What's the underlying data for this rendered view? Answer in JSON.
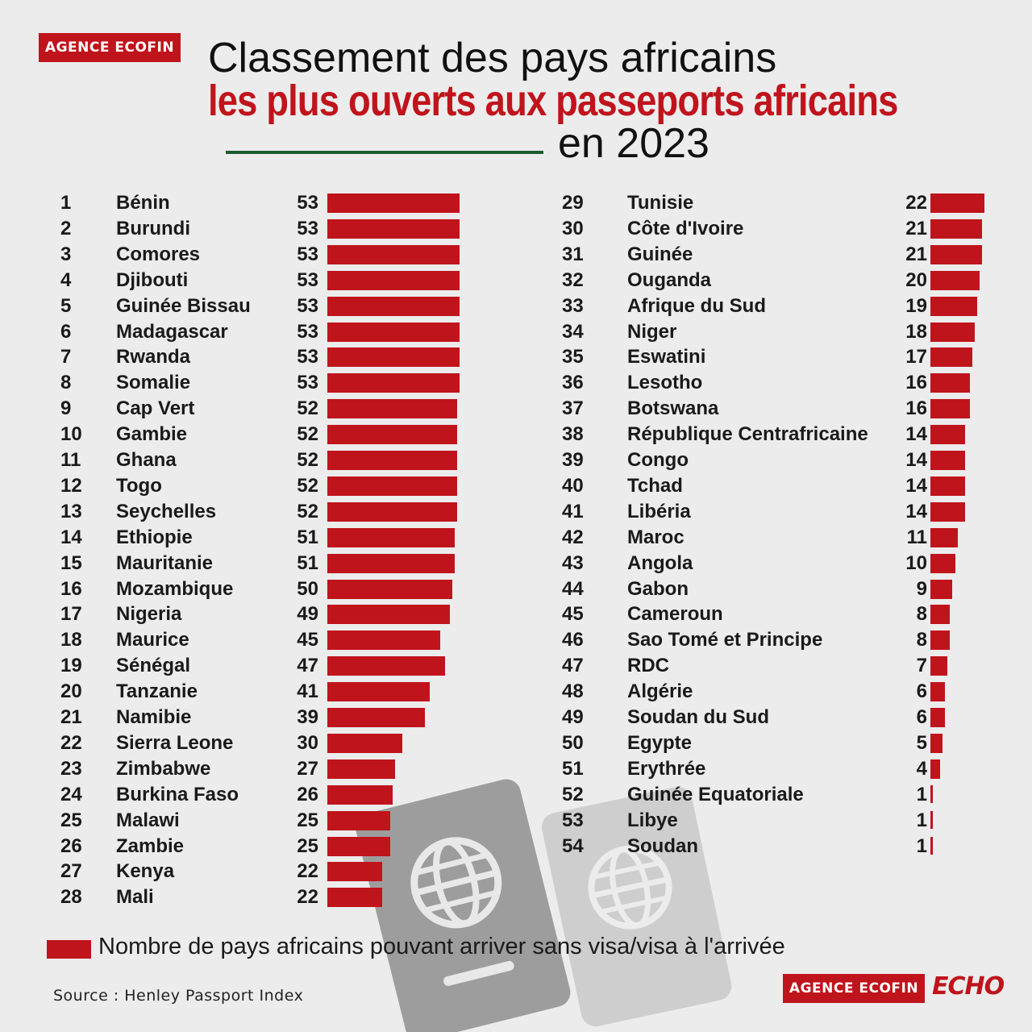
{
  "logo_text": "AGENCE ECOFIN",
  "echo_text": "ECHO",
  "title": {
    "line1": "Classement des pays africains",
    "line2": "les plus ouverts aux passeports africains",
    "line3": "en 2023"
  },
  "legend": "Nombre de pays africains pouvant arriver sans visa/visa à l'arrivée",
  "source": "Source : Henley Passport Index",
  "colors": {
    "bar": "#c0141c",
    "accent_green": "#1d5c2e"
  },
  "chart_data": {
    "type": "bar",
    "orientation": "horizontal",
    "title": "Classement des pays africains les plus ouverts aux passeports africains en 2023",
    "series_name": "Nombre de pays africains pouvant arriver sans visa/visa à l'arrivée",
    "rows": [
      {
        "rank": "1",
        "country": "Bénin",
        "value": 53
      },
      {
        "rank": "2",
        "country": "Burundi",
        "value": 53
      },
      {
        "rank": "3",
        "country": "Comores",
        "value": 53
      },
      {
        "rank": "4",
        "country": "Djibouti",
        "value": 53
      },
      {
        "rank": "5",
        "country": "Guinée Bissau",
        "value": 53
      },
      {
        "rank": "6",
        "country": "Madagascar",
        "value": 53
      },
      {
        "rank": "7",
        "country": "Rwanda",
        "value": 53
      },
      {
        "rank": "8",
        "country": "Somalie",
        "value": 53
      },
      {
        "rank": "9",
        "country": "Cap Vert",
        "value": 52
      },
      {
        "rank": "10",
        "country": "Gambie",
        "value": 52
      },
      {
        "rank": "11",
        "country": "Ghana",
        "value": 52
      },
      {
        "rank": "12",
        "country": "Togo",
        "value": 52
      },
      {
        "rank": "13",
        "country": "Seychelles",
        "value": 52
      },
      {
        "rank": "14",
        "country": "Ethiopie",
        "value": 51
      },
      {
        "rank": "15",
        "country": "Mauritanie",
        "value": 51
      },
      {
        "rank": "16",
        "country": "Mozambique",
        "value": 50
      },
      {
        "rank": "17",
        "country": "Nigeria",
        "value": 49
      },
      {
        "rank": "18",
        "country": "Maurice",
        "value": 45
      },
      {
        "rank": "19",
        "country": "Sénégal",
        "value": 47
      },
      {
        "rank": "20",
        "country": "Tanzanie",
        "value": 41
      },
      {
        "rank": "21",
        "country": "Namibie",
        "value": 39
      },
      {
        "rank": "22",
        "country": "Sierra Leone",
        "value": 30
      },
      {
        "rank": "23",
        "country": "Zimbabwe",
        "value": 27
      },
      {
        "rank": "24",
        "country": "Burkina Faso",
        "value": 26
      },
      {
        "rank": "25",
        "country": "Malawi",
        "value": 25
      },
      {
        "rank": "26",
        "country": "Zambie",
        "value": 25
      },
      {
        "rank": "27",
        "country": "Kenya",
        "value": 22
      },
      {
        "rank": "28",
        "country": "Mali",
        "value": 22
      },
      {
        "rank": "29",
        "country": "Tunisie",
        "value": 22
      },
      {
        "rank": "30",
        "country": "Côte d'Ivoire",
        "value": 21
      },
      {
        "rank": "31",
        "country": "Guinée",
        "value": 21
      },
      {
        "rank": "32",
        "country": "Ouganda",
        "value": 20
      },
      {
        "rank": "33",
        "country": "Afrique du Sud",
        "value": 19
      },
      {
        "rank": "34",
        "country": "Niger",
        "value": 18
      },
      {
        "rank": "35",
        "country": "Eswatini",
        "value": 17
      },
      {
        "rank": "36",
        "country": "Lesotho",
        "value": 16
      },
      {
        "rank": "37",
        "country": "Botswana",
        "value": 16
      },
      {
        "rank": "38",
        "country": "République Centrafricaine",
        "value": 14
      },
      {
        "rank": "39",
        "country": "Congo",
        "value": 14
      },
      {
        "rank": "40",
        "country": "Tchad",
        "value": 14
      },
      {
        "rank": "41",
        "country": "Libéria",
        "value": 14
      },
      {
        "rank": "42",
        "country": "Maroc",
        "value": 11
      },
      {
        "rank": "43",
        "country": "Angola",
        "value": 10
      },
      {
        "rank": "44",
        "country": "Gabon",
        "value": 9
      },
      {
        "rank": "45",
        "country": "Cameroun",
        "value": 8
      },
      {
        "rank": "46",
        "country": "Sao Tomé et Principe",
        "value": 8
      },
      {
        "rank": "47",
        "country": "RDC",
        "value": 7
      },
      {
        "rank": "48",
        "country": "Algérie",
        "value": 6
      },
      {
        "rank": "49",
        "country": "Soudan du Sud",
        "value": 6
      },
      {
        "rank": "50",
        "country": "Egypte",
        "value": 5
      },
      {
        "rank": "51",
        "country": "Erythrée",
        "value": 4
      },
      {
        "rank": "52",
        "country": "Guinée Equatoriale",
        "value": 1
      },
      {
        "rank": "53",
        "country": "Libye",
        "value": 1
      },
      {
        "rank": "54",
        "country": "Soudan",
        "value": 1
      }
    ]
  }
}
